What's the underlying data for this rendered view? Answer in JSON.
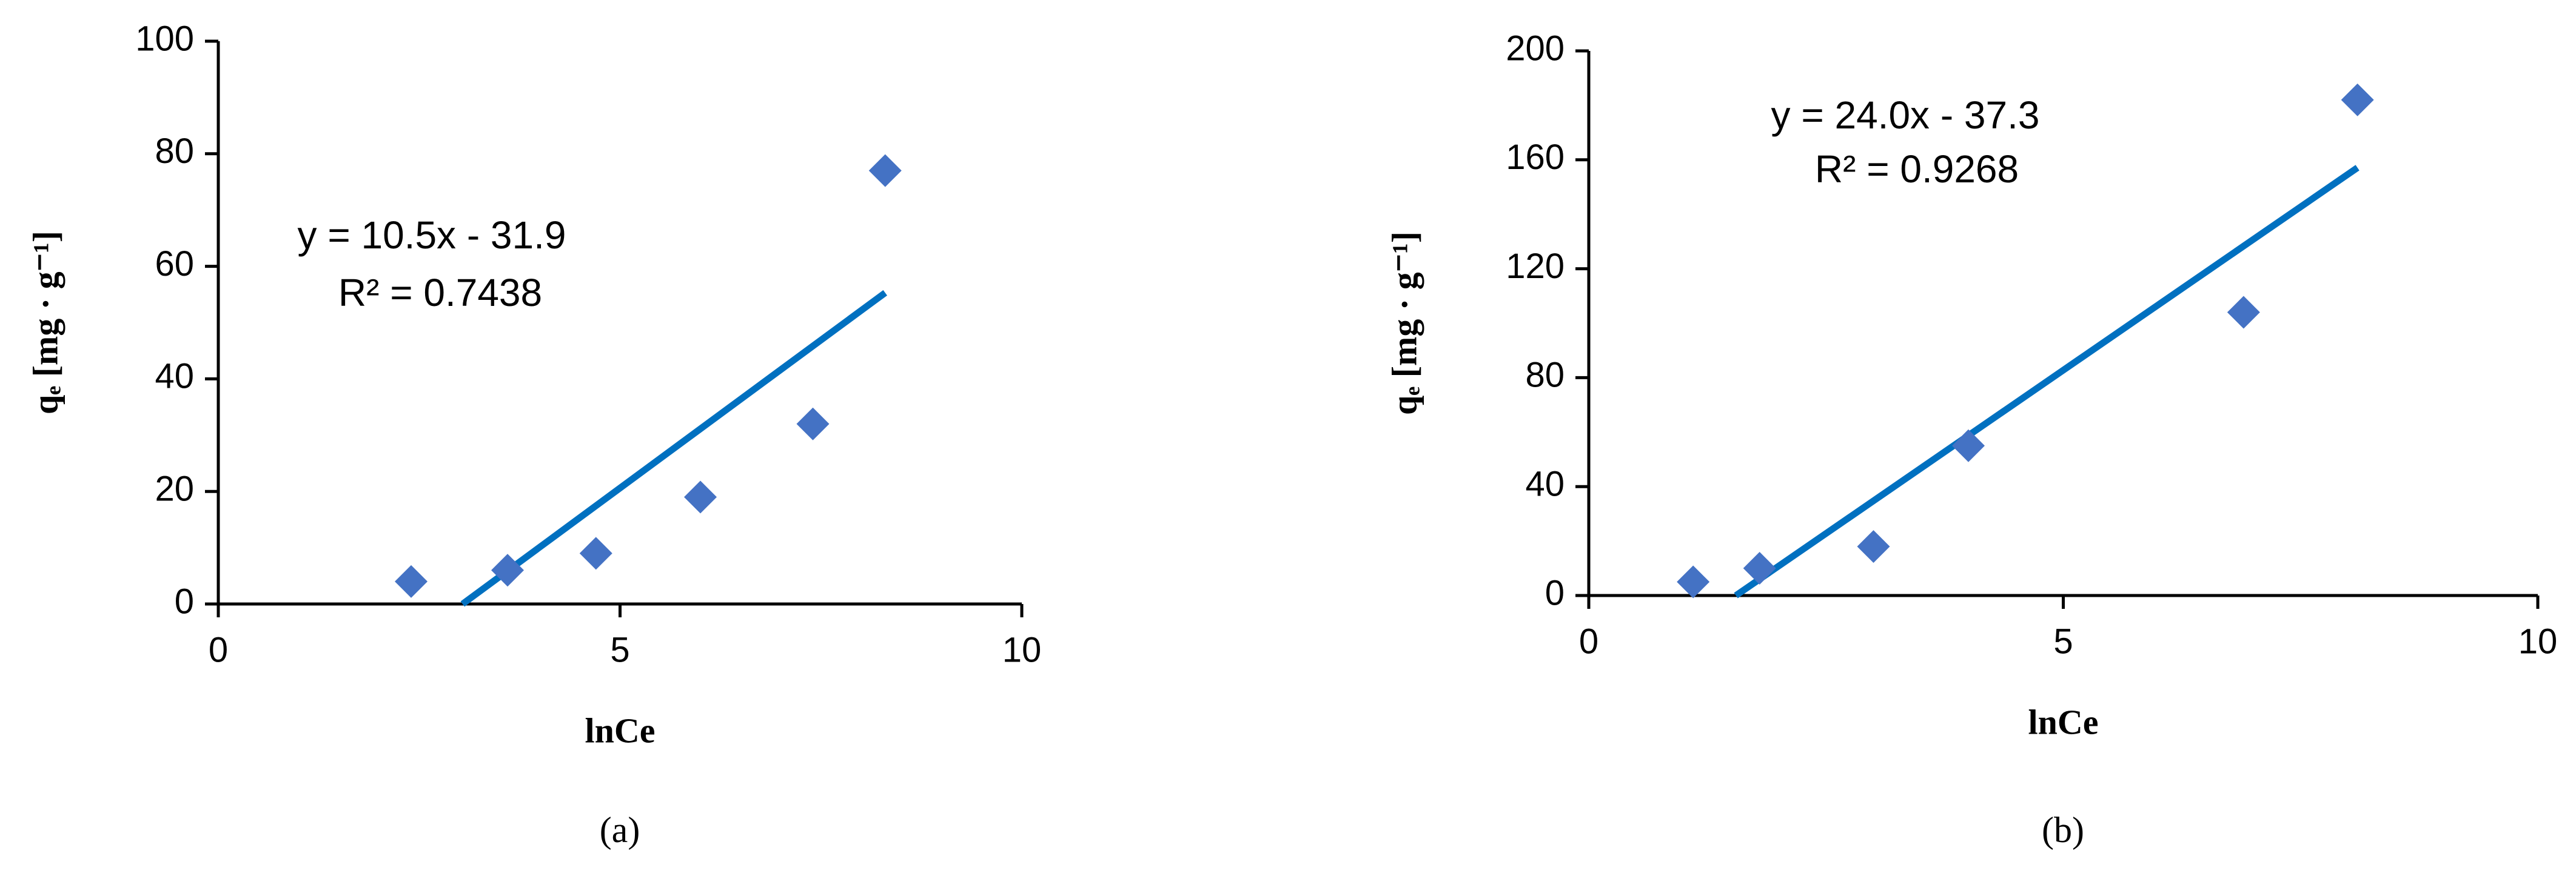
{
  "chart_data": [
    {
      "type": "scatter",
      "x_label": "lnCe",
      "y_label": "qₑ [mg · g⁻¹]",
      "caption": "(a)",
      "x": [
        2.4,
        3.6,
        4.7,
        6.0,
        7.4,
        8.3
      ],
      "values": [
        4,
        6,
        9,
        19,
        32,
        77
      ],
      "color": "#4472c4",
      "fit_line": {
        "x": [
          3.04,
          8.3
        ],
        "y": [
          0,
          55.3
        ],
        "color": "#0070c0"
      },
      "annotations": [
        "y = 10.5x - 31.9",
        "R² = 0.7438"
      ],
      "xlim": [
        0,
        10
      ],
      "xticks": [
        0,
        5,
        10
      ],
      "ylim": [
        0,
        100
      ],
      "yticks": [
        0,
        20,
        40,
        60,
        80,
        100
      ]
    },
    {
      "type": "scatter",
      "x_label": "lnCe",
      "y_label": "qₑ [mg · g⁻¹]",
      "caption": "(b)",
      "x": [
        1.1,
        1.8,
        3.0,
        4.0,
        6.9,
        8.1
      ],
      "values": [
        5,
        10,
        18,
        55,
        104,
        182
      ],
      "color": "#4472c4",
      "fit_line": {
        "x": [
          1.55,
          8.1
        ],
        "y": [
          0,
          157.1
        ],
        "color": "#0070c0"
      },
      "annotations": [
        "y = 24.0x - 37.3",
        "R² = 0.9268"
      ],
      "xlim": [
        0,
        10
      ],
      "xticks": [
        0,
        5,
        10
      ],
      "ylim": [
        0,
        200
      ],
      "yticks": [
        0,
        40,
        80,
        120,
        160,
        200
      ]
    }
  ]
}
